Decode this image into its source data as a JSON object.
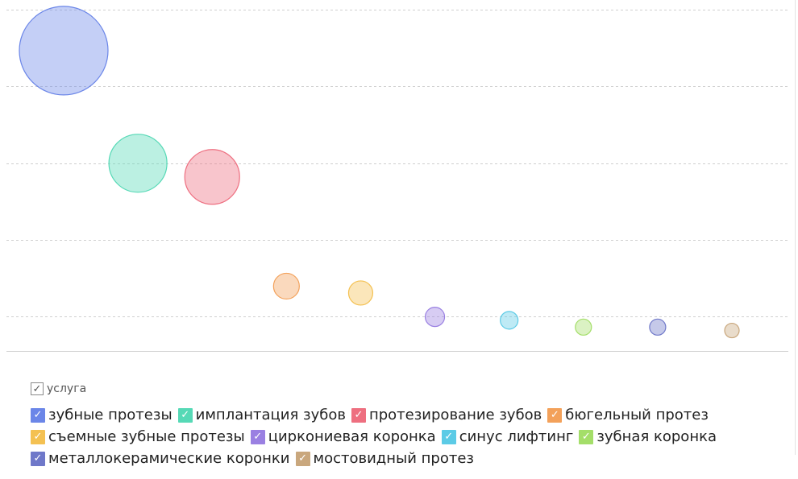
{
  "chart_data": {
    "type": "scatter",
    "title": "",
    "xlabel": "",
    "ylabel": "",
    "grid": true,
    "legend_placement": "bottom",
    "y_range": [
      0,
      100
    ],
    "series": [
      {
        "name": "зубные протезы",
        "x": 1,
        "y": 88,
        "size": 110,
        "color": "#6b86e8"
      },
      {
        "name": "имплантация зубов",
        "x": 2,
        "y": 55,
        "size": 72,
        "color": "#56d9b6"
      },
      {
        "name": "протезирование зубов",
        "x": 3,
        "y": 51,
        "size": 68,
        "color": "#ee6f80"
      },
      {
        "name": "бюгельный протез",
        "x": 4,
        "y": 19,
        "size": 32,
        "color": "#f3a15a"
      },
      {
        "name": "съемные зубные протезы",
        "x": 5,
        "y": 17,
        "size": 30,
        "color": "#f4c152"
      },
      {
        "name": "циркониевая коронка",
        "x": 6,
        "y": 10,
        "size": 24,
        "color": "#9a80e2"
      },
      {
        "name": "синус лифтинг",
        "x": 7,
        "y": 9,
        "size": 22,
        "color": "#5ccbe6"
      },
      {
        "name": "зубная коронка",
        "x": 8,
        "y": 7,
        "size": 20,
        "color": "#a4de69"
      },
      {
        "name": "металлокерамические коронки",
        "x": 9,
        "y": 7,
        "size": 20,
        "color": "#6f78c9"
      },
      {
        "name": "мостовидный протез",
        "x": 10,
        "y": 6,
        "size": 18,
        "color": "#c9a77d"
      }
    ]
  },
  "legend": {
    "title": "услуга",
    "check_glyph": "✓"
  }
}
